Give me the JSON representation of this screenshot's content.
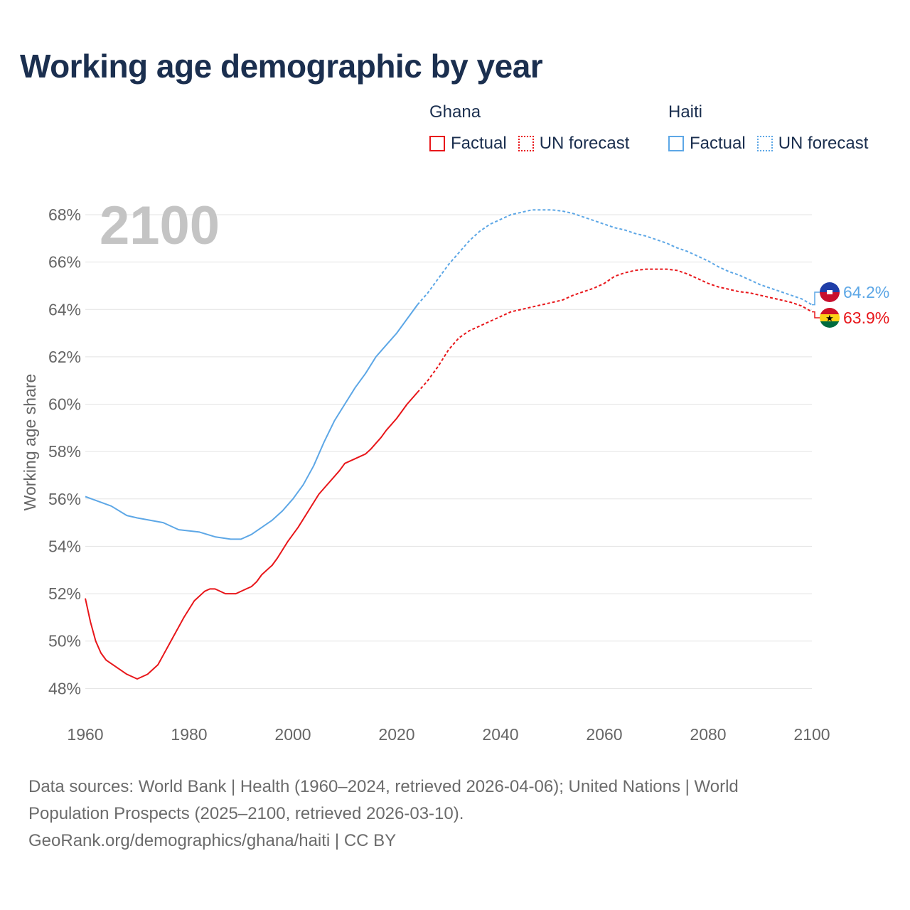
{
  "title": "Working age demographic by year",
  "legend": {
    "groups": [
      {
        "name": "Ghana",
        "color": "#e8161a",
        "factual_label": "Factual",
        "forecast_label": "UN forecast"
      },
      {
        "name": "Haiti",
        "color": "#5da7e6",
        "factual_label": "Factual",
        "forecast_label": "UN forecast"
      }
    ]
  },
  "footer": {
    "sources": "Data sources: World Bank | Health (1960–2024, retrieved 2026-04-06); United Nations | World Population Prospects (2025–2100, retrieved 2026-03-10).",
    "credit": "GeoRank.org/demographics/ghana/haiti | CC BY"
  },
  "chart_data": {
    "type": "line",
    "title": "Working age demographic by year",
    "year_overlay": "2100",
    "xlabel": "",
    "ylabel": "Working age share",
    "xlim": [
      1960,
      2100
    ],
    "ylim": [
      47.5,
      68.6
    ],
    "x_ticks": [
      1960,
      1980,
      2000,
      2020,
      2040,
      2060,
      2080,
      2100
    ],
    "x_tick_labels": [
      "1960",
      "1980",
      "2000",
      "2020",
      "2040",
      "2060",
      "2080",
      "2100"
    ],
    "y_ticks": [
      48,
      50,
      52,
      54,
      56,
      58,
      60,
      62,
      64,
      66,
      68
    ],
    "y_tick_labels": [
      "48%",
      "50%",
      "52%",
      "54%",
      "56%",
      "58%",
      "60%",
      "62%",
      "64%",
      "66%",
      "68%"
    ],
    "grid": true,
    "forecast_start": 2024,
    "series": [
      {
        "name": "Haiti",
        "color": "#5da7e6",
        "end_label": "64.2%",
        "points": [
          [
            1960,
            56.1
          ],
          [
            1965,
            55.7
          ],
          [
            1968,
            55.3
          ],
          [
            1970,
            55.2
          ],
          [
            1975,
            55.0
          ],
          [
            1978,
            54.7
          ],
          [
            1982,
            54.6
          ],
          [
            1985,
            54.4
          ],
          [
            1988,
            54.3
          ],
          [
            1990,
            54.3
          ],
          [
            1992,
            54.5
          ],
          [
            1994,
            54.8
          ],
          [
            1996,
            55.1
          ],
          [
            1998,
            55.5
          ],
          [
            2000,
            56.0
          ],
          [
            2002,
            56.6
          ],
          [
            2004,
            57.4
          ],
          [
            2006,
            58.4
          ],
          [
            2008,
            59.3
          ],
          [
            2010,
            60.0
          ],
          [
            2012,
            60.7
          ],
          [
            2014,
            61.3
          ],
          [
            2016,
            62.0
          ],
          [
            2018,
            62.5
          ],
          [
            2020,
            63.0
          ],
          [
            2022,
            63.6
          ],
          [
            2024,
            64.2
          ],
          [
            2026,
            64.7
          ],
          [
            2028,
            65.3
          ],
          [
            2030,
            65.9
          ],
          [
            2032,
            66.4
          ],
          [
            2034,
            66.9
          ],
          [
            2036,
            67.3
          ],
          [
            2038,
            67.6
          ],
          [
            2040,
            67.8
          ],
          [
            2042,
            68.0
          ],
          [
            2044,
            68.1
          ],
          [
            2046,
            68.2
          ],
          [
            2048,
            68.2
          ],
          [
            2050,
            68.2
          ],
          [
            2052,
            68.15
          ],
          [
            2054,
            68.05
          ],
          [
            2056,
            67.9
          ],
          [
            2058,
            67.75
          ],
          [
            2060,
            67.6
          ],
          [
            2062,
            67.45
          ],
          [
            2064,
            67.35
          ],
          [
            2066,
            67.2
          ],
          [
            2068,
            67.1
          ],
          [
            2070,
            66.95
          ],
          [
            2072,
            66.8
          ],
          [
            2074,
            66.6
          ],
          [
            2076,
            66.45
          ],
          [
            2078,
            66.25
          ],
          [
            2080,
            66.05
          ],
          [
            2082,
            65.8
          ],
          [
            2084,
            65.6
          ],
          [
            2086,
            65.45
          ],
          [
            2088,
            65.25
          ],
          [
            2090,
            65.05
          ],
          [
            2092,
            64.9
          ],
          [
            2094,
            64.75
          ],
          [
            2096,
            64.6
          ],
          [
            2098,
            64.45
          ],
          [
            2100,
            64.2
          ]
        ]
      },
      {
        "name": "Ghana",
        "color": "#e8161a",
        "end_label": "63.9%",
        "points": [
          [
            1960,
            51.8
          ],
          [
            1961,
            50.8
          ],
          [
            1962,
            50.0
          ],
          [
            1963,
            49.5
          ],
          [
            1964,
            49.2
          ],
          [
            1966,
            48.9
          ],
          [
            1968,
            48.6
          ],
          [
            1970,
            48.4
          ],
          [
            1972,
            48.6
          ],
          [
            1974,
            49.0
          ],
          [
            1975,
            49.4
          ],
          [
            1977,
            50.2
          ],
          [
            1979,
            51.0
          ],
          [
            1981,
            51.7
          ],
          [
            1983,
            52.1
          ],
          [
            1984,
            52.2
          ],
          [
            1985,
            52.2
          ],
          [
            1987,
            52.0
          ],
          [
            1989,
            52.0
          ],
          [
            1991,
            52.2
          ],
          [
            1992,
            52.3
          ],
          [
            1993,
            52.5
          ],
          [
            1994,
            52.8
          ],
          [
            1996,
            53.2
          ],
          [
            1997,
            53.5
          ],
          [
            1999,
            54.2
          ],
          [
            2001,
            54.8
          ],
          [
            2003,
            55.5
          ],
          [
            2005,
            56.2
          ],
          [
            2007,
            56.7
          ],
          [
            2009,
            57.2
          ],
          [
            2010,
            57.5
          ],
          [
            2012,
            57.7
          ],
          [
            2014,
            57.9
          ],
          [
            2015,
            58.1
          ],
          [
            2017,
            58.6
          ],
          [
            2018,
            58.9
          ],
          [
            2020,
            59.4
          ],
          [
            2022,
            60.0
          ],
          [
            2024,
            60.5
          ],
          [
            2026,
            61.0
          ],
          [
            2028,
            61.6
          ],
          [
            2030,
            62.3
          ],
          [
            2032,
            62.8
          ],
          [
            2034,
            63.1
          ],
          [
            2036,
            63.3
          ],
          [
            2038,
            63.5
          ],
          [
            2040,
            63.7
          ],
          [
            2042,
            63.9
          ],
          [
            2044,
            64.0
          ],
          [
            2046,
            64.1
          ],
          [
            2048,
            64.2
          ],
          [
            2050,
            64.3
          ],
          [
            2052,
            64.4
          ],
          [
            2054,
            64.6
          ],
          [
            2056,
            64.75
          ],
          [
            2058,
            64.9
          ],
          [
            2060,
            65.1
          ],
          [
            2062,
            65.4
          ],
          [
            2064,
            65.55
          ],
          [
            2066,
            65.65
          ],
          [
            2068,
            65.7
          ],
          [
            2070,
            65.7
          ],
          [
            2072,
            65.7
          ],
          [
            2074,
            65.65
          ],
          [
            2076,
            65.5
          ],
          [
            2078,
            65.3
          ],
          [
            2080,
            65.1
          ],
          [
            2082,
            64.95
          ],
          [
            2084,
            64.85
          ],
          [
            2086,
            64.75
          ],
          [
            2088,
            64.7
          ],
          [
            2090,
            64.6
          ],
          [
            2092,
            64.5
          ],
          [
            2094,
            64.4
          ],
          [
            2096,
            64.3
          ],
          [
            2098,
            64.15
          ],
          [
            2100,
            63.9
          ]
        ]
      }
    ]
  }
}
